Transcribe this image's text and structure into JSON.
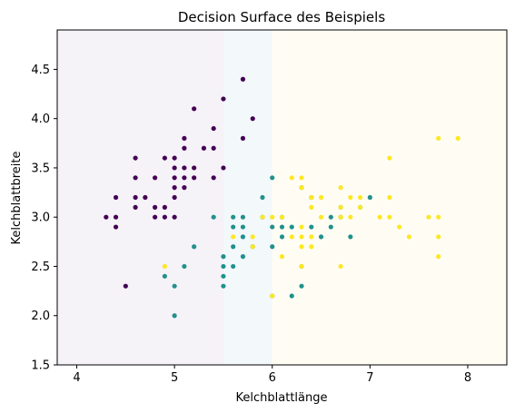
{
  "chart_data": {
    "type": "scatter",
    "title": "Decision Surface des Beispiels",
    "xlabel": "Kelchblattlänge",
    "ylabel": "Kelchblattbreite",
    "xlim": [
      3.8,
      8.4
    ],
    "ylim": [
      1.5,
      4.9
    ],
    "x_ticks": [
      4,
      5,
      6,
      7,
      8
    ],
    "y_ticks": [
      1.5,
      2.0,
      2.5,
      3.0,
      3.5,
      4.0,
      4.5
    ],
    "grid": false,
    "regions": [
      {
        "x_from": 3.8,
        "x_to": 5.5,
        "color": "#f5f2f8"
      },
      {
        "x_from": 5.5,
        "x_to": 6.0,
        "color": "#f3f8fb"
      },
      {
        "x_from": 6.0,
        "x_to": 8.4,
        "color": "#fffdf3"
      }
    ],
    "series": [
      {
        "color": "#440154",
        "points": [
          [
            4.3,
            3.0
          ],
          [
            4.4,
            2.9
          ],
          [
            4.4,
            3.0
          ],
          [
            4.4,
            3.2
          ],
          [
            4.5,
            2.3
          ],
          [
            4.6,
            3.1
          ],
          [
            4.6,
            3.2
          ],
          [
            4.6,
            3.4
          ],
          [
            4.6,
            3.6
          ],
          [
            4.7,
            3.2
          ],
          [
            4.8,
            3.0
          ],
          [
            4.8,
            3.1
          ],
          [
            4.8,
            3.4
          ],
          [
            4.9,
            3.0
          ],
          [
            4.9,
            3.1
          ],
          [
            4.9,
            3.6
          ],
          [
            5.0,
            3.0
          ],
          [
            5.0,
            3.2
          ],
          [
            5.0,
            3.3
          ],
          [
            5.0,
            3.4
          ],
          [
            5.0,
            3.5
          ],
          [
            5.0,
            3.6
          ],
          [
            5.1,
            3.3
          ],
          [
            5.1,
            3.4
          ],
          [
            5.1,
            3.5
          ],
          [
            5.1,
            3.7
          ],
          [
            5.1,
            3.8
          ],
          [
            5.2,
            3.4
          ],
          [
            5.2,
            3.5
          ],
          [
            5.2,
            4.1
          ],
          [
            5.3,
            3.7
          ],
          [
            5.4,
            3.4
          ],
          [
            5.4,
            3.7
          ],
          [
            5.4,
            3.9
          ],
          [
            5.5,
            3.5
          ],
          [
            5.5,
            4.2
          ],
          [
            5.7,
            3.8
          ],
          [
            5.7,
            4.4
          ],
          [
            5.8,
            4.0
          ]
        ]
      },
      {
        "color": "#21918c",
        "points": [
          [
            4.9,
            2.4
          ],
          [
            5.0,
            2.0
          ],
          [
            5.0,
            2.3
          ],
          [
            5.1,
            2.5
          ],
          [
            5.2,
            2.7
          ],
          [
            5.4,
            3.0
          ],
          [
            5.5,
            2.3
          ],
          [
            5.5,
            2.4
          ],
          [
            5.5,
            2.5
          ],
          [
            5.5,
            2.6
          ],
          [
            5.6,
            2.5
          ],
          [
            5.6,
            2.7
          ],
          [
            5.6,
            2.9
          ],
          [
            5.6,
            3.0
          ],
          [
            5.7,
            2.6
          ],
          [
            5.7,
            2.8
          ],
          [
            5.7,
            2.9
          ],
          [
            5.7,
            3.0
          ],
          [
            5.8,
            2.7
          ],
          [
            5.9,
            3.0
          ],
          [
            5.9,
            3.2
          ],
          [
            6.0,
            2.2
          ],
          [
            6.0,
            2.7
          ],
          [
            6.0,
            2.9
          ],
          [
            6.0,
            3.4
          ],
          [
            6.1,
            2.8
          ],
          [
            6.1,
            2.9
          ],
          [
            6.1,
            3.0
          ],
          [
            6.2,
            2.2
          ],
          [
            6.2,
            2.9
          ],
          [
            6.3,
            2.3
          ],
          [
            6.3,
            2.5
          ],
          [
            6.3,
            3.3
          ],
          [
            6.4,
            2.9
          ],
          [
            6.4,
            3.2
          ],
          [
            6.5,
            2.8
          ],
          [
            6.6,
            2.9
          ],
          [
            6.6,
            3.0
          ],
          [
            6.7,
            3.0
          ],
          [
            6.7,
            3.1
          ],
          [
            6.8,
            2.8
          ],
          [
            6.9,
            3.1
          ],
          [
            7.0,
            3.2
          ]
        ]
      },
      {
        "color": "#fde725",
        "points": [
          [
            4.9,
            2.5
          ],
          [
            5.6,
            2.8
          ],
          [
            5.8,
            2.7
          ],
          [
            5.8,
            2.8
          ],
          [
            5.9,
            3.0
          ],
          [
            6.0,
            2.2
          ],
          [
            6.0,
            3.0
          ],
          [
            6.1,
            2.6
          ],
          [
            6.1,
            3.0
          ],
          [
            6.2,
            2.8
          ],
          [
            6.2,
            3.4
          ],
          [
            6.3,
            2.5
          ],
          [
            6.3,
            2.7
          ],
          [
            6.3,
            2.8
          ],
          [
            6.3,
            2.9
          ],
          [
            6.3,
            3.3
          ],
          [
            6.3,
            3.4
          ],
          [
            6.4,
            2.7
          ],
          [
            6.4,
            2.8
          ],
          [
            6.4,
            3.1
          ],
          [
            6.4,
            3.2
          ],
          [
            6.5,
            3.0
          ],
          [
            6.5,
            3.2
          ],
          [
            6.7,
            2.5
          ],
          [
            6.7,
            3.0
          ],
          [
            6.7,
            3.1
          ],
          [
            6.7,
            3.3
          ],
          [
            6.8,
            3.0
          ],
          [
            6.8,
            3.2
          ],
          [
            6.9,
            3.1
          ],
          [
            6.9,
            3.2
          ],
          [
            7.1,
            3.0
          ],
          [
            7.2,
            3.0
          ],
          [
            7.2,
            3.2
          ],
          [
            7.2,
            3.6
          ],
          [
            7.3,
            2.9
          ],
          [
            7.4,
            2.8
          ],
          [
            7.6,
            3.0
          ],
          [
            7.7,
            2.6
          ],
          [
            7.7,
            2.8
          ],
          [
            7.7,
            3.0
          ],
          [
            7.7,
            3.8
          ],
          [
            7.9,
            3.8
          ]
        ]
      }
    ]
  }
}
